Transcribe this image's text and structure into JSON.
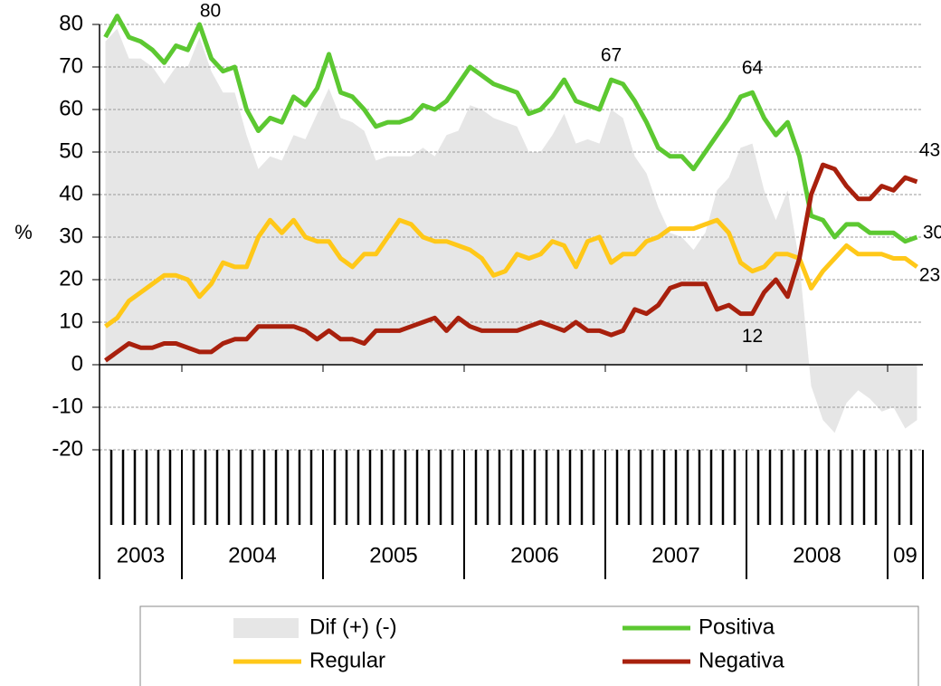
{
  "chart_data": {
    "type": "line",
    "y_label": "%",
    "ylim": [
      -20,
      80
    ],
    "yticks": [
      -20,
      -10,
      0,
      10,
      20,
      30,
      40,
      50,
      60,
      70,
      80
    ],
    "grid": true,
    "categories": [
      "2003",
      "2003",
      "2003",
      "2003",
      "2003",
      "2003",
      "2003",
      "2004",
      "2004",
      "2004",
      "2004",
      "2004",
      "2004",
      "2004",
      "2004",
      "2004",
      "2004",
      "2004",
      "2004",
      "2005",
      "2005",
      "2005",
      "2005",
      "2005",
      "2005",
      "2005",
      "2005",
      "2005",
      "2005",
      "2005",
      "2005",
      "2006",
      "2006",
      "2006",
      "2006",
      "2006",
      "2006",
      "2006",
      "2006",
      "2006",
      "2006",
      "2006",
      "2006",
      "2007",
      "2007",
      "2007",
      "2007",
      "2007",
      "2007",
      "2007",
      "2007",
      "2007",
      "2007",
      "2007",
      "2007",
      "2008",
      "2008",
      "2008",
      "2008",
      "2008",
      "2008",
      "2008",
      "2008",
      "2008",
      "2008",
      "2008",
      "2008",
      "09",
      "09",
      "09"
    ],
    "legend": "bottom",
    "series": [
      {
        "name": "Dif (+) (-)",
        "kind": "area",
        "color": "#e6e6e6",
        "values": [
          76,
          79,
          72,
          72,
          70,
          66,
          70,
          70,
          77,
          69,
          64,
          64,
          54,
          46,
          49,
          48,
          54,
          53,
          59,
          65,
          58,
          57,
          55,
          48,
          49,
          49,
          49,
          51,
          49,
          54,
          55,
          61,
          60,
          58,
          57,
          56,
          50,
          50,
          54,
          59,
          52,
          53,
          52,
          60,
          58,
          49,
          45,
          37,
          31,
          30,
          27,
          31,
          41,
          44,
          51,
          52,
          41,
          34,
          41,
          24,
          -5,
          -13,
          -16,
          -9,
          -6,
          -8,
          -11,
          -10,
          -15,
          -13
        ]
      },
      {
        "name": "Positiva",
        "kind": "line",
        "color": "#5cc831",
        "labels_at": [
          8,
          43,
          55,
          69
        ],
        "values": [
          77,
          82,
          77,
          76,
          74,
          71,
          75,
          74,
          80,
          72,
          69,
          70,
          60,
          55,
          58,
          57,
          63,
          61,
          65,
          73,
          64,
          63,
          60,
          56,
          57,
          57,
          58,
          61,
          60,
          62,
          66,
          70,
          68,
          66,
          65,
          64,
          59,
          60,
          63,
          67,
          62,
          61,
          60,
          67,
          66,
          62,
          57,
          51,
          49,
          49,
          46,
          50,
          54,
          58,
          63,
          64,
          58,
          54,
          57,
          49,
          35,
          34,
          30,
          33,
          33,
          31,
          31,
          31,
          29,
          30
        ]
      },
      {
        "name": "Regular",
        "kind": "line",
        "color": "#ffc819",
        "labels_at": [
          69
        ],
        "values": [
          9,
          11,
          15,
          17,
          19,
          21,
          21,
          20,
          16,
          19,
          24,
          23,
          23,
          30,
          34,
          31,
          34,
          30,
          29,
          29,
          25,
          23,
          26,
          26,
          30,
          34,
          33,
          30,
          29,
          29,
          28,
          27,
          25,
          21,
          22,
          26,
          25,
          26,
          29,
          28,
          23,
          29,
          30,
          24,
          26,
          26,
          29,
          30,
          32,
          32,
          32,
          33,
          34,
          31,
          24,
          22,
          23,
          26,
          26,
          25,
          18,
          22,
          25,
          28,
          26,
          26,
          26,
          25,
          25,
          23
        ]
      },
      {
        "name": "Negativa",
        "kind": "line",
        "color": "#a8200d",
        "labels_at": [
          55,
          69
        ],
        "values": [
          1,
          3,
          5,
          4,
          4,
          5,
          5,
          4,
          3,
          3,
          5,
          6,
          6,
          9,
          9,
          9,
          9,
          8,
          6,
          8,
          6,
          6,
          5,
          8,
          8,
          8,
          9,
          10,
          11,
          8,
          11,
          9,
          8,
          8,
          8,
          8,
          9,
          10,
          9,
          8,
          10,
          8,
          8,
          7,
          8,
          13,
          12,
          14,
          18,
          19,
          19,
          19,
          13,
          14,
          12,
          12,
          17,
          20,
          16,
          25,
          40,
          47,
          46,
          42,
          39,
          39,
          42,
          41,
          44,
          43
        ]
      }
    ]
  }
}
